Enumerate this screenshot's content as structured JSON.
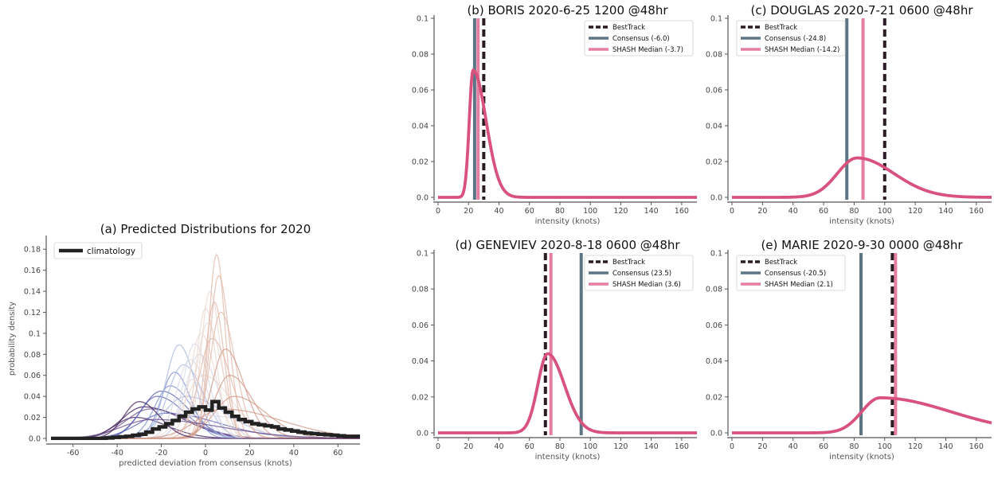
{
  "chart_data": [
    {
      "id": "a",
      "type": "line",
      "title": "(a) Predicted Distributions for 2020",
      "xlabel": "predicted deviation from consensus (knots)",
      "ylabel": "probability density",
      "xlim": [
        -70,
        70
      ],
      "ylim": [
        0,
        0.19
      ],
      "xticks": [
        -60,
        -40,
        -20,
        0,
        20,
        40,
        60
      ],
      "yticks": [
        0.0,
        0.02,
        0.04,
        0.06,
        0.08,
        0.1,
        0.12,
        0.14,
        0.16,
        0.18
      ],
      "ytick_labels": [
        "0.0",
        "0.02",
        "0.04",
        "0.06",
        "0.08",
        "0.1",
        "0.12",
        "0.14",
        "0.16",
        "0.18"
      ],
      "legend": [
        "climatology"
      ],
      "legend_position": "top-left",
      "colors": {
        "climatology": "#222222",
        "ensemble_ramp": [
          "#3c1a56",
          "#6a4e8e",
          "#5a5fb0",
          "#7f8fd0",
          "#a8b8e0",
          "#d8d8e8",
          "#ead8d0",
          "#e2b8a8",
          "#cf9888"
        ]
      },
      "note_series": "many thin ensemble curves (one per forecast), colored from dark purple (negative mean) through pale to tan/peach (positive mean); thick stepped black climatology histogram",
      "climatology": {
        "x": [
          -70,
          -48,
          -45,
          -42,
          -39,
          -36,
          -33,
          -30,
          -27,
          -24,
          -21,
          -18,
          -15,
          -12,
          -9,
          -6,
          -3,
          0,
          3,
          6,
          9,
          12,
          15,
          18,
          21,
          24,
          27,
          30,
          33,
          36,
          39,
          42,
          45,
          48,
          51,
          54,
          57,
          60,
          63,
          66,
          70
        ],
        "y": [
          0.0,
          0.0,
          0.0005,
          0.001,
          0.0015,
          0.002,
          0.003,
          0.004,
          0.006,
          0.009,
          0.011,
          0.014,
          0.017,
          0.021,
          0.025,
          0.028,
          0.03,
          0.027,
          0.035,
          0.029,
          0.025,
          0.021,
          0.018,
          0.016,
          0.014,
          0.013,
          0.012,
          0.011,
          0.009,
          0.008,
          0.007,
          0.006,
          0.005,
          0.0045,
          0.004,
          0.0035,
          0.003,
          0.0025,
          0.002,
          0.002,
          0.002
        ]
      },
      "ensemble": [
        {
          "mu": -32,
          "sigma": 9,
          "skew": 1.6,
          "peak": 0.02
        },
        {
          "mu": -28,
          "sigma": 10,
          "skew": 1.8,
          "peak": 0.03
        },
        {
          "mu": -25,
          "sigma": 11,
          "skew": 1.6,
          "peak": 0.028
        },
        {
          "mu": -22,
          "sigma": 8,
          "skew": 1.6,
          "peak": 0.04
        },
        {
          "mu": -20,
          "sigma": 9,
          "skew": 1.4,
          "peak": 0.045
        },
        {
          "mu": -18,
          "sigma": 12,
          "skew": 2.0,
          "peak": 0.024
        },
        {
          "mu": -16,
          "sigma": 7,
          "skew": 1.4,
          "peak": 0.05
        },
        {
          "mu": -14,
          "sigma": 6,
          "skew": 1.2,
          "peak": 0.063
        },
        {
          "mu": -12,
          "sigma": 6,
          "skew": 1.2,
          "peak": 0.089
        },
        {
          "mu": -10,
          "sigma": 7,
          "skew": 1.3,
          "peak": 0.07
        },
        {
          "mu": -9,
          "sigma": 10,
          "skew": 1.8,
          "peak": 0.04
        },
        {
          "mu": -7,
          "sigma": 6,
          "skew": 1.3,
          "peak": 0.075
        },
        {
          "mu": -6,
          "sigma": 5,
          "skew": 1.2,
          "peak": 0.056
        },
        {
          "mu": -5,
          "sigma": 5,
          "skew": 1.3,
          "peak": 0.09
        },
        {
          "mu": -3,
          "sigma": 6,
          "skew": 1.4,
          "peak": 0.08
        },
        {
          "mu": -2,
          "sigma": 5,
          "skew": 1.3,
          "peak": 0.1
        },
        {
          "mu": -1,
          "sigma": 8,
          "skew": 1.6,
          "peak": 0.06
        },
        {
          "mu": 0,
          "sigma": 4,
          "skew": 1.2,
          "peak": 0.124
        },
        {
          "mu": 1,
          "sigma": 5,
          "skew": 1.3,
          "peak": 0.11
        },
        {
          "mu": 2,
          "sigma": 4,
          "skew": 1.2,
          "peak": 0.14
        },
        {
          "mu": 3,
          "sigma": 6,
          "skew": 1.4,
          "peak": 0.095
        },
        {
          "mu": 4,
          "sigma": 4,
          "skew": 1.1,
          "peak": 0.13
        },
        {
          "mu": 5,
          "sigma": 3.5,
          "skew": 1.1,
          "peak": 0.175
        },
        {
          "mu": 6,
          "sigma": 4,
          "skew": 1.2,
          "peak": 0.155
        },
        {
          "mu": 7,
          "sigma": 5,
          "skew": 1.3,
          "peak": 0.12
        },
        {
          "mu": 9,
          "sigma": 6,
          "skew": 1.4,
          "peak": 0.085
        },
        {
          "mu": 11,
          "sigma": 7,
          "skew": 1.5,
          "peak": 0.06
        },
        {
          "mu": 13,
          "sigma": 9,
          "skew": 1.6,
          "peak": 0.04
        },
        {
          "mu": -24,
          "sigma": 14,
          "skew": 2.2,
          "peak": 0.018
        },
        {
          "mu": -4,
          "sigma": 14,
          "skew": 2.4,
          "peak": 0.022
        },
        {
          "mu": 8,
          "sigma": 12,
          "skew": 2.2,
          "peak": 0.028
        },
        {
          "mu": -30,
          "sigma": 7,
          "skew": 1.3,
          "peak": 0.035
        }
      ]
    },
    {
      "id": "b",
      "type": "line",
      "title": "(b) BORIS 2020-6-25 1200 @48hr",
      "xlabel": "intensity (knots)",
      "xlim": [
        0,
        170
      ],
      "ylim": [
        0,
        0.1
      ],
      "xticks": [
        0,
        20,
        40,
        60,
        80,
        100,
        120,
        140,
        160
      ],
      "yticks": [
        0.0,
        0.02,
        0.04,
        0.06,
        0.08,
        0.1
      ],
      "ytick_labels": [
        "0.0",
        "0.02",
        "0.04",
        "0.06",
        "0.08",
        "0.1"
      ],
      "legend": [
        "BestTrack",
        "Consensus (-6.0)",
        "SHASH Median (-3.7)"
      ],
      "legend_position": "top-right",
      "besttrack": 30,
      "consensus": 24,
      "shash_median": 26.3,
      "pdf": {
        "peak_x": 23,
        "peak_y": 0.071,
        "sigma_left": 2.5,
        "sigma_right": 8.5
      }
    },
    {
      "id": "c",
      "type": "line",
      "title": "(c) DOUGLAS 2020-7-21 0600 @48hr",
      "xlabel": "intensity (knots)",
      "xlim": [
        0,
        170
      ],
      "ylim": [
        0,
        0.1
      ],
      "xticks": [
        0,
        20,
        40,
        60,
        80,
        100,
        120,
        140,
        160
      ],
      "yticks": [
        0.0,
        0.02,
        0.04,
        0.06,
        0.08,
        0.1
      ],
      "ytick_labels": [
        "0.0",
        "0.02",
        "0.04",
        "0.06",
        "0.08",
        "0.1"
      ],
      "legend": [
        "BestTrack",
        "Consensus (-24.8)",
        "SHASH Median (-14.2)"
      ],
      "legend_position": "top-left",
      "besttrack": 100,
      "consensus": 75.2,
      "shash_median": 85.8,
      "pdf": {
        "peak_x": 82,
        "peak_y": 0.022,
        "sigma_left": 13,
        "sigma_right": 24
      }
    },
    {
      "id": "d",
      "type": "line",
      "title": "(d) GENEVIEV 2020-8-18 0600 @48hr",
      "xlabel": "intensity (knots)",
      "xlim": [
        0,
        170
      ],
      "ylim": [
        0,
        0.1
      ],
      "xticks": [
        0,
        20,
        40,
        60,
        80,
        100,
        120,
        140,
        160
      ],
      "yticks": [
        0.0,
        0.02,
        0.04,
        0.06,
        0.08,
        0.1
      ],
      "ytick_labels": [
        "0.0",
        "0.02",
        "0.04",
        "0.06",
        "0.08",
        "0.1"
      ],
      "legend": [
        "BestTrack",
        "Consensus (23.5)",
        "SHASH Median (3.6)"
      ],
      "legend_position": "top-right",
      "besttrack": 70.5,
      "consensus": 94,
      "shash_median": 74.1,
      "pdf": {
        "peak_x": 72,
        "peak_y": 0.044,
        "sigma_left": 6.5,
        "sigma_right": 11
      }
    },
    {
      "id": "e",
      "type": "line",
      "title": "(e) MARIE 2020-9-30 0000 @48hr",
      "xlabel": "intensity (knots)",
      "xlim": [
        0,
        170
      ],
      "ylim": [
        0,
        0.1
      ],
      "xticks": [
        0,
        20,
        40,
        60,
        80,
        100,
        120,
        140,
        160
      ],
      "yticks": [
        0.0,
        0.02,
        0.04,
        0.06,
        0.08,
        0.1
      ],
      "ytick_labels": [
        "0.0",
        "0.02",
        "0.04",
        "0.06",
        "0.08",
        "0.1"
      ],
      "legend": [
        "BestTrack",
        "Consensus (-20.5)",
        "SHASH Median (2.1)"
      ],
      "legend_position": "top-left",
      "besttrack": 105,
      "consensus": 84.5,
      "shash_median": 107.1,
      "pdf": {
        "peak_x": 97,
        "peak_y": 0.0195,
        "sigma_left": 12,
        "sigma_right": 46
      }
    }
  ],
  "colors": {
    "besttrack": "#2b1b24",
    "consensus": "#5c7585",
    "shash_median": "#e57ea0",
    "pdf": "#d9527d",
    "axis": "#555555"
  }
}
